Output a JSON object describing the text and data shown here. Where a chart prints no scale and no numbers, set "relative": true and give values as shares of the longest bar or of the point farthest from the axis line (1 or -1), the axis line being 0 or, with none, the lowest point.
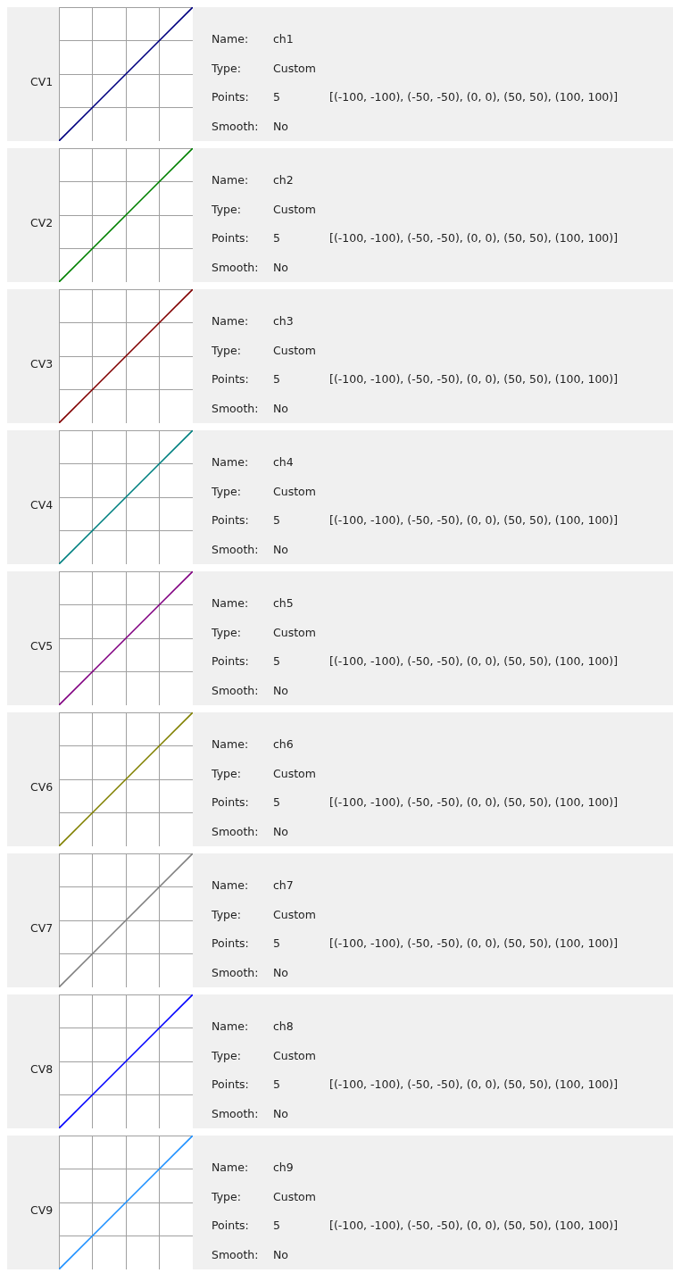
{
  "chart_data": [
    {
      "type": "line",
      "title": "CV1",
      "categories": [
        null,
        null,
        null,
        null,
        null
      ],
      "relative": true,
      "series": [
        {
          "color": "#000080",
          "values": [
            0,
            0.25,
            0.5,
            0.75,
            1
          ]
        }
      ],
      "grid": true,
      "annotations": [
        "Name:",
        "ch1",
        "Type:",
        "Custom",
        "Points:",
        "5",
        "[(-100, -100), (-50, -50), (0, 0), (50, 50), (100, 100)]",
        "Smooth:",
        "No"
      ]
    },
    {
      "type": "line",
      "title": "CV2",
      "categories": [
        null,
        null,
        null,
        null,
        null
      ],
      "relative": true,
      "series": [
        {
          "color": "#008000",
          "values": [
            0,
            0.25,
            0.5,
            0.75,
            1
          ]
        }
      ],
      "grid": true,
      "annotations": [
        "Name:",
        "ch2",
        "Type:",
        "Custom",
        "Points:",
        "5",
        "[(-100, -100), (-50, -50), (0, 0), (50, 50), (100, 100)]",
        "Smooth:",
        "No"
      ]
    },
    {
      "type": "line",
      "title": "CV3",
      "categories": [
        null,
        null,
        null,
        null,
        null
      ],
      "relative": true,
      "series": [
        {
          "color": "#800000",
          "values": [
            0,
            0.25,
            0.5,
            0.75,
            1
          ]
        }
      ],
      "grid": true,
      "annotations": [
        "Name:",
        "ch3",
        "Type:",
        "Custom",
        "Points:",
        "5",
        "[(-100, -100), (-50, -50), (0, 0), (50, 50), (100, 100)]",
        "Smooth:",
        "No"
      ]
    },
    {
      "type": "line",
      "title": "CV4",
      "categories": [
        null,
        null,
        null,
        null,
        null
      ],
      "relative": true,
      "series": [
        {
          "color": "#008080",
          "values": [
            0,
            0.25,
            0.5,
            0.75,
            1
          ]
        }
      ],
      "grid": true,
      "annotations": [
        "Name:",
        "ch4",
        "Type:",
        "Custom",
        "Points:",
        "5",
        "[(-100, -100), (-50, -50), (0, 0), (50, 50), (100, 100)]",
        "Smooth:",
        "No"
      ]
    },
    {
      "type": "line",
      "title": "CV5",
      "categories": [
        null,
        null,
        null,
        null,
        null
      ],
      "relative": true,
      "series": [
        {
          "color": "#800080",
          "values": [
            0,
            0.25,
            0.5,
            0.75,
            1
          ]
        }
      ],
      "grid": true,
      "annotations": [
        "Name:",
        "ch5",
        "Type:",
        "Custom",
        "Points:",
        "5",
        "[(-100, -100), (-50, -50), (0, 0), (50, 50), (100, 100)]",
        "Smooth:",
        "No"
      ]
    },
    {
      "type": "line",
      "title": "CV6",
      "categories": [
        null,
        null,
        null,
        null,
        null
      ],
      "relative": true,
      "series": [
        {
          "color": "#808000",
          "values": [
            0,
            0.25,
            0.5,
            0.75,
            1
          ]
        }
      ],
      "grid": true,
      "annotations": [
        "Name:",
        "ch6",
        "Type:",
        "Custom",
        "Points:",
        "5",
        "[(-100, -100), (-50, -50), (0, 0), (50, 50), (100, 100)]",
        "Smooth:",
        "No"
      ]
    },
    {
      "type": "line",
      "title": "CV7",
      "categories": [
        null,
        null,
        null,
        null,
        null
      ],
      "relative": true,
      "series": [
        {
          "color": "#808080",
          "values": [
            0,
            0.25,
            0.5,
            0.75,
            1
          ]
        }
      ],
      "grid": true,
      "annotations": [
        "Name:",
        "ch7",
        "Type:",
        "Custom",
        "Points:",
        "5",
        "[(-100, -100), (-50, -50), (0, 0), (50, 50), (100, 100)]",
        "Smooth:",
        "No"
      ]
    },
    {
      "type": "line",
      "title": "CV8",
      "categories": [
        null,
        null,
        null,
        null,
        null
      ],
      "relative": true,
      "series": [
        {
          "color": "#0000ff",
          "values": [
            0,
            0.25,
            0.5,
            0.75,
            1
          ]
        }
      ],
      "grid": true,
      "annotations": [
        "Name:",
        "ch8",
        "Type:",
        "Custom",
        "Points:",
        "5",
        "[(-100, -100), (-50, -50), (0, 0), (50, 50), (100, 100)]",
        "Smooth:",
        "No"
      ]
    },
    {
      "type": "line",
      "title": "CV9",
      "categories": [
        null,
        null,
        null,
        null,
        null
      ],
      "relative": true,
      "series": [
        {
          "color": "#1e90ff",
          "values": [
            0,
            0.25,
            0.5,
            0.75,
            1
          ]
        }
      ],
      "grid": true,
      "annotations": [
        "Name:",
        "ch9",
        "Type:",
        "Custom",
        "Points:",
        "5",
        "[(-100, -100), (-50, -50), (0, 0), (50, 50), (100, 100)]",
        "Smooth:",
        "No"
      ]
    }
  ]
}
